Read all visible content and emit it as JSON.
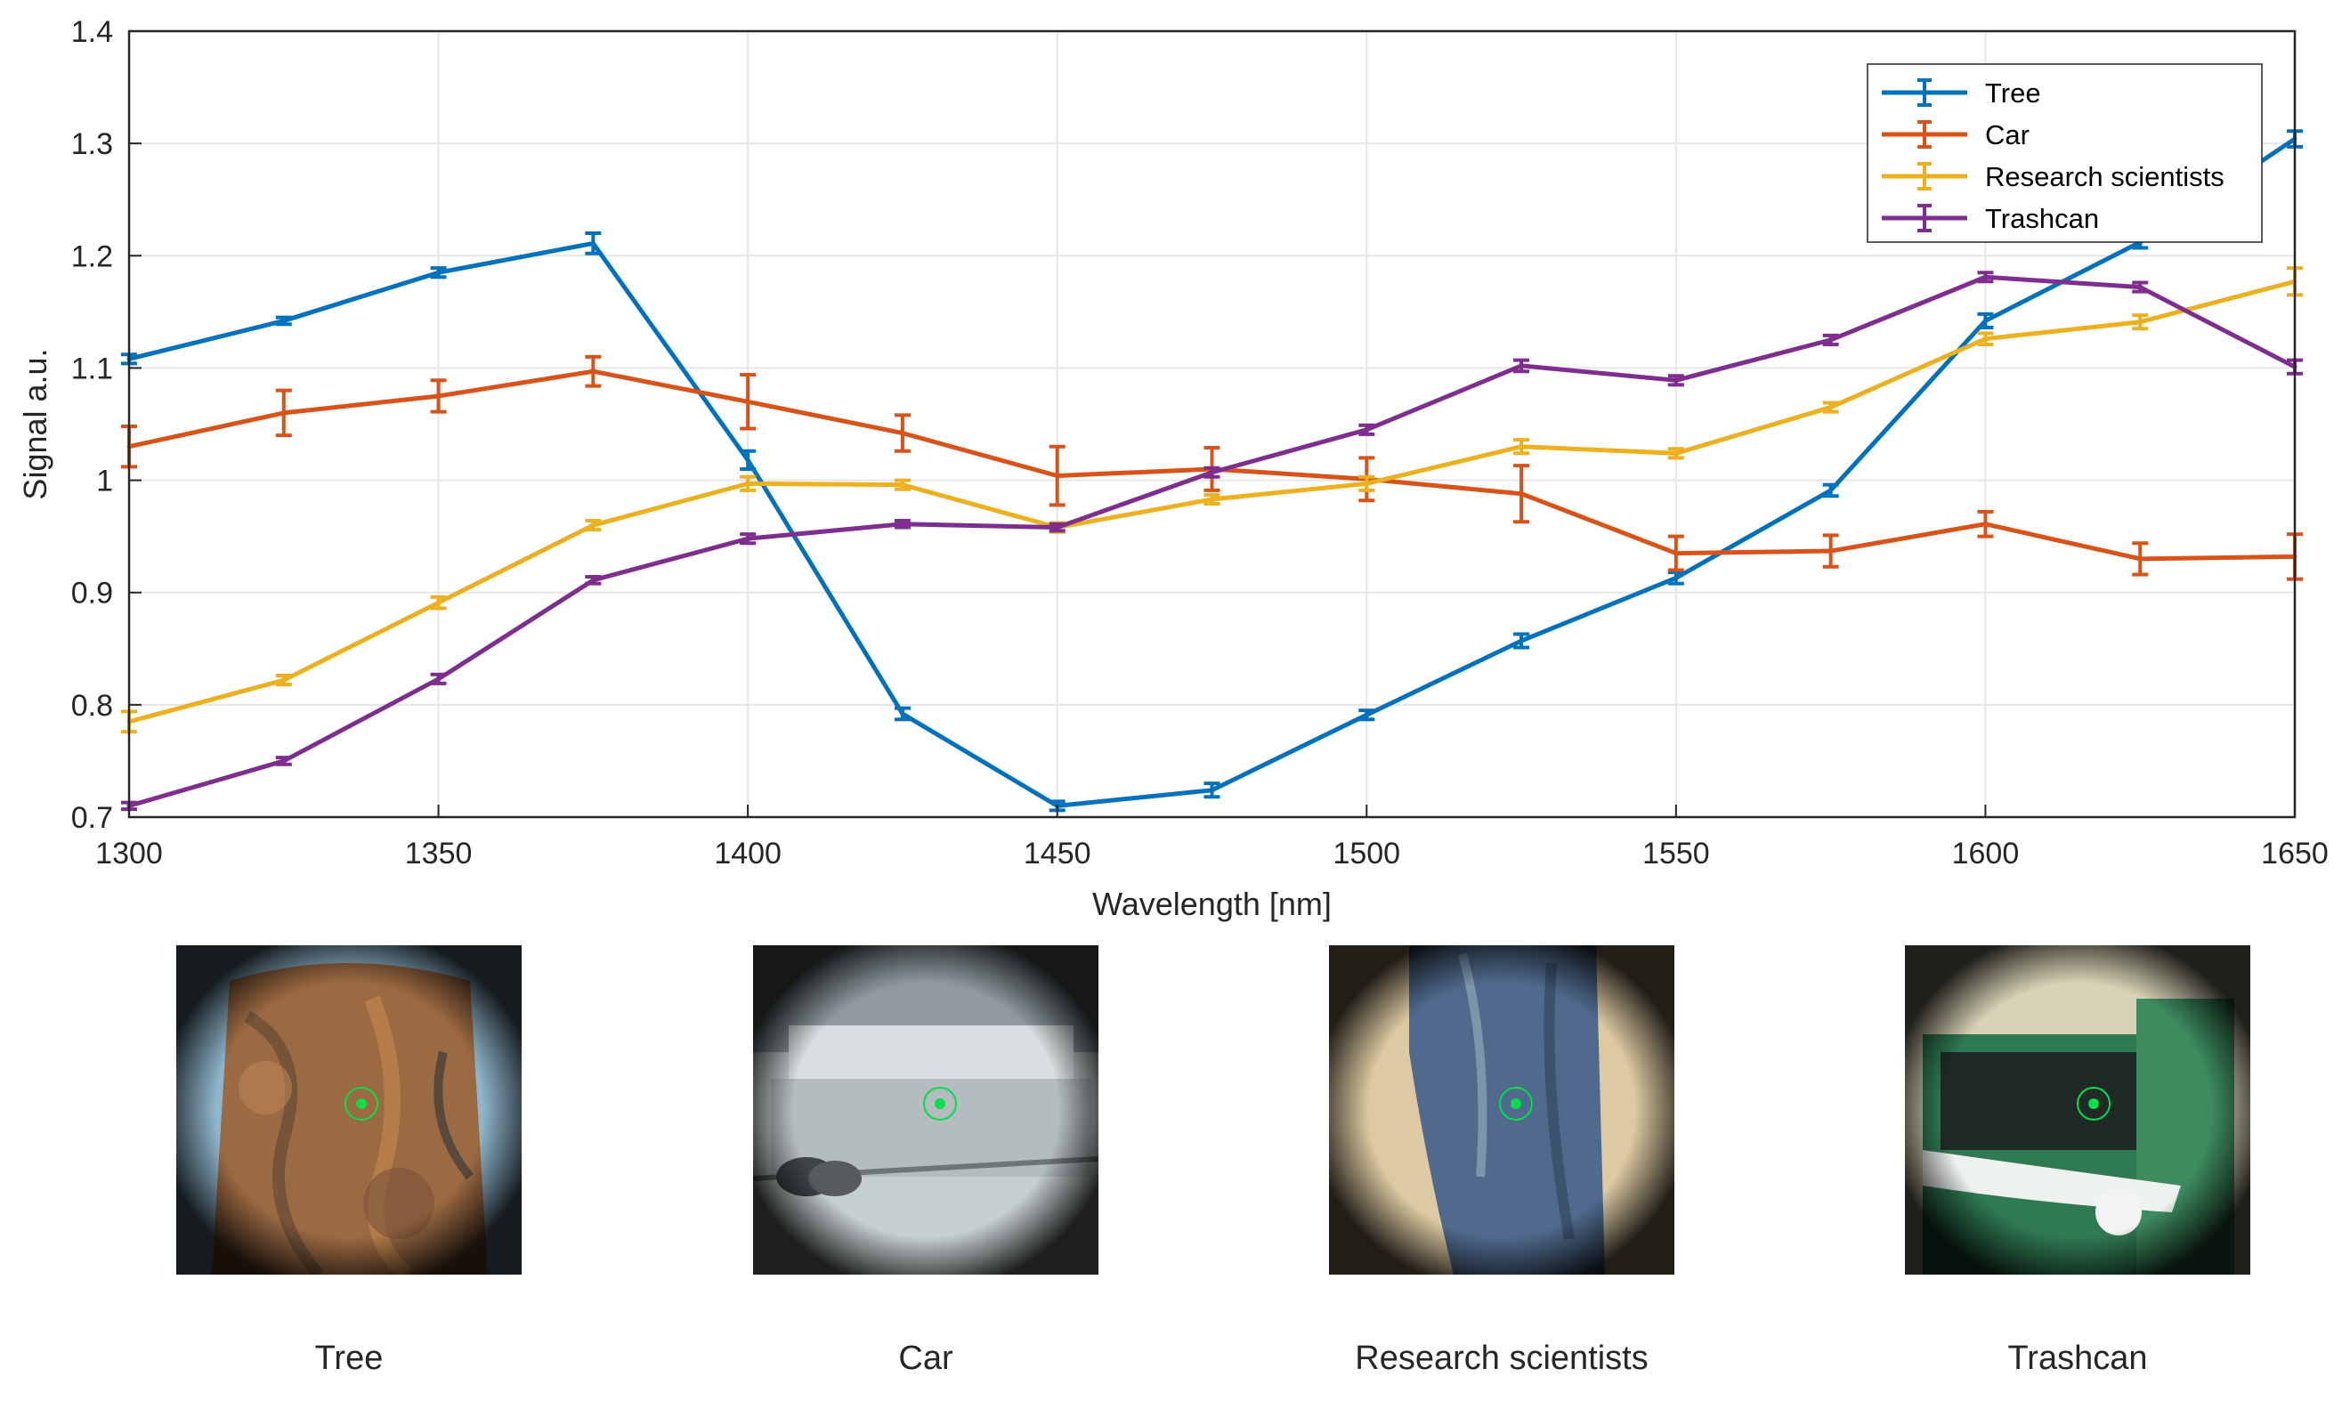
{
  "chart_data": {
    "type": "line",
    "title": "",
    "xlabel": "Wavelength [nm]",
    "ylabel": "Signal a.u.",
    "xlim": [
      1300,
      1650
    ],
    "ylim": [
      0.7,
      1.4
    ],
    "grid": true,
    "legend_position": "top-right",
    "x_ticks": [
      "1300",
      "1350",
      "1400",
      "1450",
      "1500",
      "1550",
      "1600",
      "1650"
    ],
    "y_ticks": [
      "0.7",
      "0.8",
      "0.9",
      "1",
      "1.1",
      "1.2",
      "1.3",
      "1.4"
    ],
    "x": [
      1300,
      1325,
      1350,
      1375,
      1400,
      1425,
      1450,
      1475,
      1500,
      1525,
      1550,
      1575,
      1600,
      1625,
      1650
    ],
    "series": [
      {
        "name": "Tree",
        "color": "#0072BD",
        "values": [
          1.108,
          1.142,
          1.185,
          1.211,
          1.018,
          0.792,
          0.71,
          0.724,
          0.791,
          0.857,
          0.913,
          0.991,
          1.142,
          1.212,
          1.304
        ],
        "errors": [
          0.004,
          0.003,
          0.004,
          0.009,
          0.008,
          0.005,
          0.004,
          0.006,
          0.004,
          0.006,
          0.005,
          0.005,
          0.006,
          0.005,
          0.007
        ]
      },
      {
        "name": "Car",
        "color": "#D95319",
        "values": [
          1.03,
          1.06,
          1.075,
          1.097,
          1.07,
          1.042,
          1.004,
          1.01,
          1.001,
          0.988,
          0.935,
          0.937,
          0.961,
          0.93,
          0.932
        ],
        "errors": [
          0.018,
          0.02,
          0.014,
          0.013,
          0.024,
          0.016,
          0.026,
          0.019,
          0.019,
          0.025,
          0.015,
          0.014,
          0.011,
          0.014,
          0.02
        ]
      },
      {
        "name": "Research scientists",
        "color": "#EDB120",
        "values": [
          0.785,
          0.822,
          0.891,
          0.96,
          0.997,
          0.996,
          0.958,
          0.983,
          0.997,
          1.03,
          1.024,
          1.065,
          1.126,
          1.141,
          1.177
        ],
        "errors": [
          0.009,
          0.004,
          0.005,
          0.004,
          0.006,
          0.004,
          0.004,
          0.004,
          0.006,
          0.006,
          0.004,
          0.004,
          0.005,
          0.006,
          0.012
        ]
      },
      {
        "name": "Trashcan",
        "color": "#7E2F8E",
        "values": [
          0.71,
          0.75,
          0.823,
          0.911,
          0.948,
          0.961,
          0.958,
          1.007,
          1.045,
          1.102,
          1.089,
          1.125,
          1.181,
          1.172,
          1.101
        ],
        "errors": [
          0.003,
          0.003,
          0.004,
          0.003,
          0.004,
          0.003,
          0.003,
          0.004,
          0.004,
          0.005,
          0.004,
          0.004,
          0.004,
          0.004,
          0.006
        ]
      }
    ]
  },
  "photos": [
    {
      "caption": "Tree",
      "icon": "bark-photo"
    },
    {
      "caption": "Car",
      "icon": "car-photo"
    },
    {
      "caption": "Research scientists",
      "icon": "jeans-photo"
    },
    {
      "caption": "Trashcan",
      "icon": "trashcan-photo"
    }
  ],
  "colors": {
    "grid": "#e6e6e6",
    "axis": "#262626",
    "target_marker": "#00e04a"
  }
}
